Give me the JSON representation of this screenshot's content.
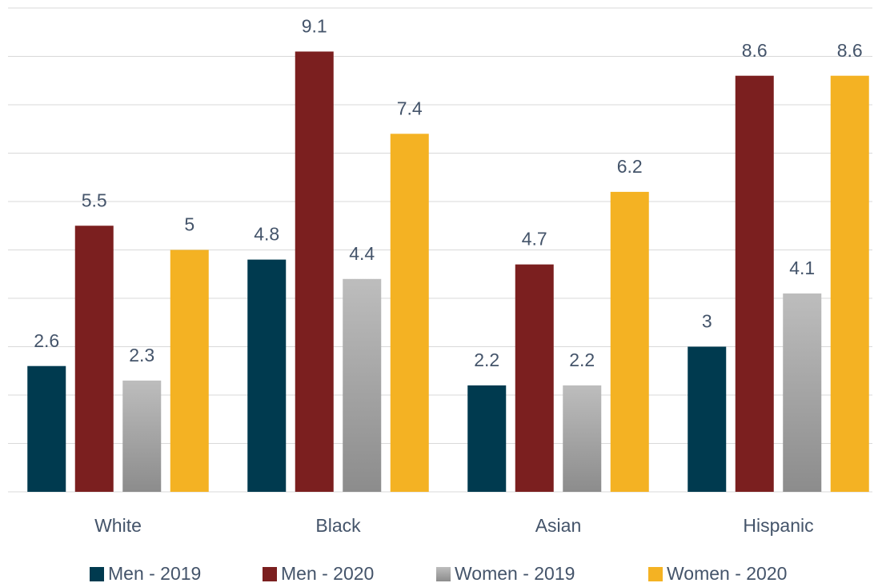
{
  "chart_data": {
    "type": "bar",
    "categories": [
      "White",
      "Black",
      "Asian",
      "Hispanic"
    ],
    "series": [
      {
        "name": "Men - 2019",
        "color": "#003a4f",
        "values": [
          2.6,
          4.8,
          2.2,
          3
        ]
      },
      {
        "name": "Men - 2020",
        "color": "#7b1f1f",
        "values": [
          5.5,
          9.1,
          4.7,
          8.6
        ]
      },
      {
        "name": "Women - 2019",
        "color": "#a6a6a6",
        "values": [
          2.3,
          4.4,
          2.2,
          4.1
        ]
      },
      {
        "name": "Women - 2020",
        "color": "#f4b223",
        "values": [
          5,
          7.4,
          6.2,
          8.6
        ]
      }
    ],
    "ylim": [
      0,
      10
    ],
    "yticks": [
      0,
      1,
      2,
      3,
      4,
      5,
      6,
      7,
      8,
      9,
      10
    ],
    "grid": true,
    "legend": "bottom"
  }
}
